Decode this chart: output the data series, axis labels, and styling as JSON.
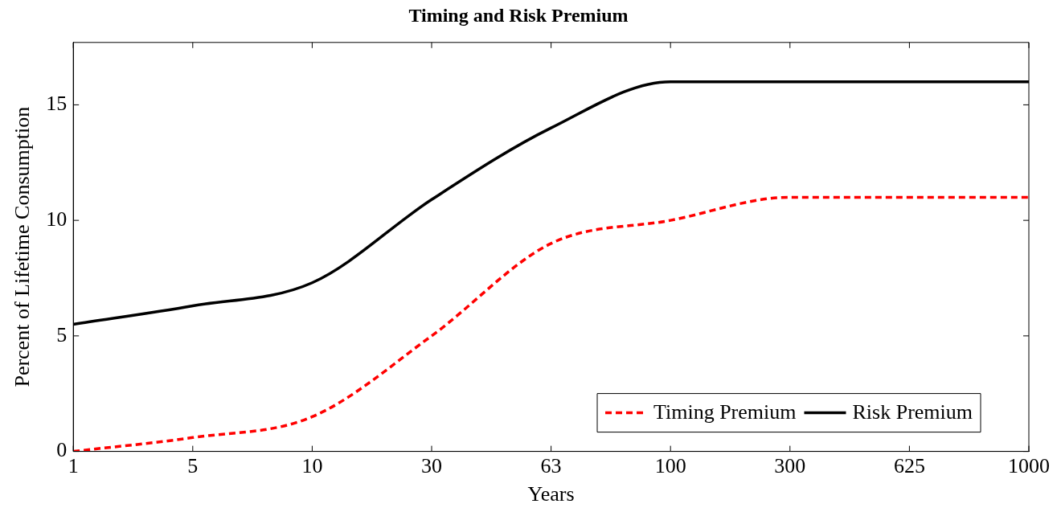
{
  "chart_data": {
    "type": "line",
    "title": "Timing and Risk Premium",
    "xlabel": "Years",
    "ylabel": "Percent of Lifetime Consumption",
    "categories": [
      "1",
      "5",
      "10",
      "30",
      "63",
      "100",
      "300",
      "625",
      "1000"
    ],
    "series": [
      {
        "name": "Timing Premium",
        "color": "#ff0000",
        "line_style": "dashed",
        "values": [
          0,
          0.6,
          1.5,
          5,
          9,
          10,
          11,
          11,
          11
        ]
      },
      {
        "name": "Risk Premium",
        "color": "#000000",
        "line_style": "solid",
        "values": [
          5.5,
          6.3,
          7.3,
          10.9,
          14,
          16,
          16,
          16,
          16
        ]
      }
    ],
    "ylim": [
      0,
      17.7
    ],
    "yticks": [
      0,
      5,
      10,
      15
    ],
    "grid": false,
    "legend": "bottom right",
    "marker": "none"
  }
}
